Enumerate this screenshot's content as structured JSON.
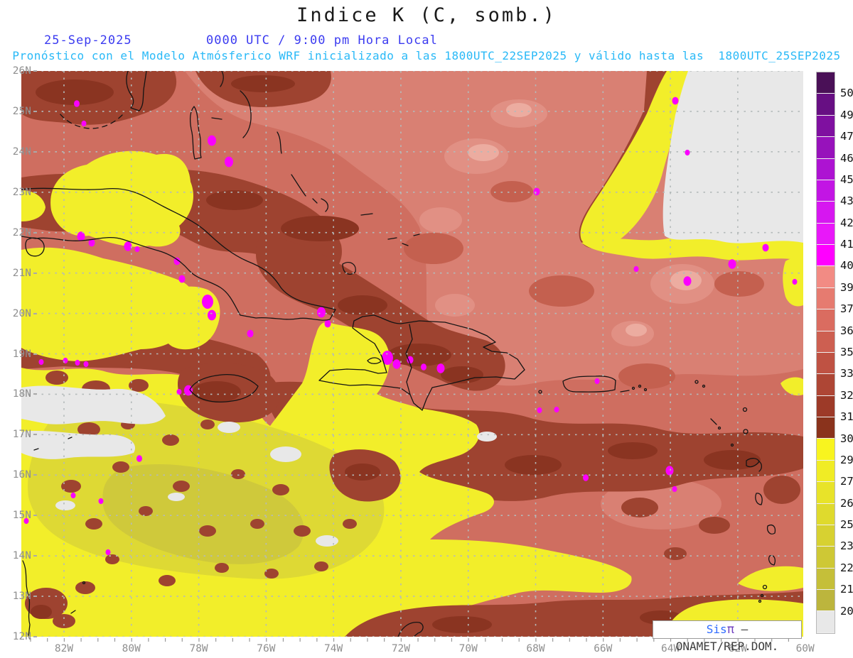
{
  "header": {
    "title": "Indice K (C, somb.)",
    "date": "25-Sep-2025",
    "time_line": "0000 UTC / 9:00 pm Hora Local",
    "subtitle": "Pronóstico con el Modelo Atmósferico WRF inicializado a las 1800UTC_22SEP2025 y válido hasta las  1800UTC_25SEP2025",
    "title_color": "#1a1a1a",
    "date_color": "#3b3bf0",
    "subtitle_color": "#29b9f7"
  },
  "axes": {
    "lat_labels": [
      "26N",
      "25N",
      "24N",
      "23N",
      "22N",
      "21N",
      "20N",
      "19N",
      "18N",
      "17N",
      "16N",
      "15N",
      "14N",
      "13N",
      "12N"
    ],
    "lon_labels": [
      "82W",
      "80W",
      "78W",
      "76W",
      "74W",
      "72W",
      "70W",
      "68W",
      "66W",
      "64W",
      "62W",
      "60W"
    ],
    "label_color": "#8f8f8f"
  },
  "legend": {
    "labels": [
      "50",
      "49.1",
      "47.8",
      "46.5",
      "45.2",
      "43.9",
      "42.6",
      "41.3",
      "40",
      "39.1",
      "37.8",
      "36.5",
      "35.2",
      "33.9",
      "32.6",
      "31.3",
      "30",
      "29.1",
      "27.8",
      "26.5",
      "25.2",
      "23.9",
      "22.6",
      "21.3",
      "20"
    ],
    "colors": [
      "#4a1057",
      "#670f83",
      "#7f10a0",
      "#9712bb",
      "#ad13d2",
      "#c215e4",
      "#d617f0",
      "#e818f9",
      "#ff00ff",
      "#f28b84",
      "#e67b70",
      "#da6c60",
      "#cd5f51",
      "#bf5243",
      "#ae4635",
      "#9d3a28",
      "#8a331c",
      "#f8f41f",
      "#f0ec25",
      "#e8e329",
      "#dfda2d",
      "#d7d131",
      "#cec835",
      "#c5bf39",
      "#bcb53d",
      "#e8e8e8"
    ]
  },
  "map_colors": {
    "base_salmon": "#cf6e60",
    "light_salmon": "#d98073",
    "lighter_pink": "#e19084",
    "pale_pink": "#ecaca0",
    "dark_red": "#9e4330",
    "brick": "#8a3421",
    "yellow": "#f2ee2a",
    "olive": "#ded934",
    "deep_olive": "#cfc93b",
    "gray_low": "#e8e8e8",
    "magenta": "#fa00fe",
    "coastline": "#141414",
    "grid": "#b4baba"
  },
  "watermark": {
    "prefix": "Sis",
    "pi": "π",
    "suffix": " – ONAMET/REP.DOM."
  }
}
